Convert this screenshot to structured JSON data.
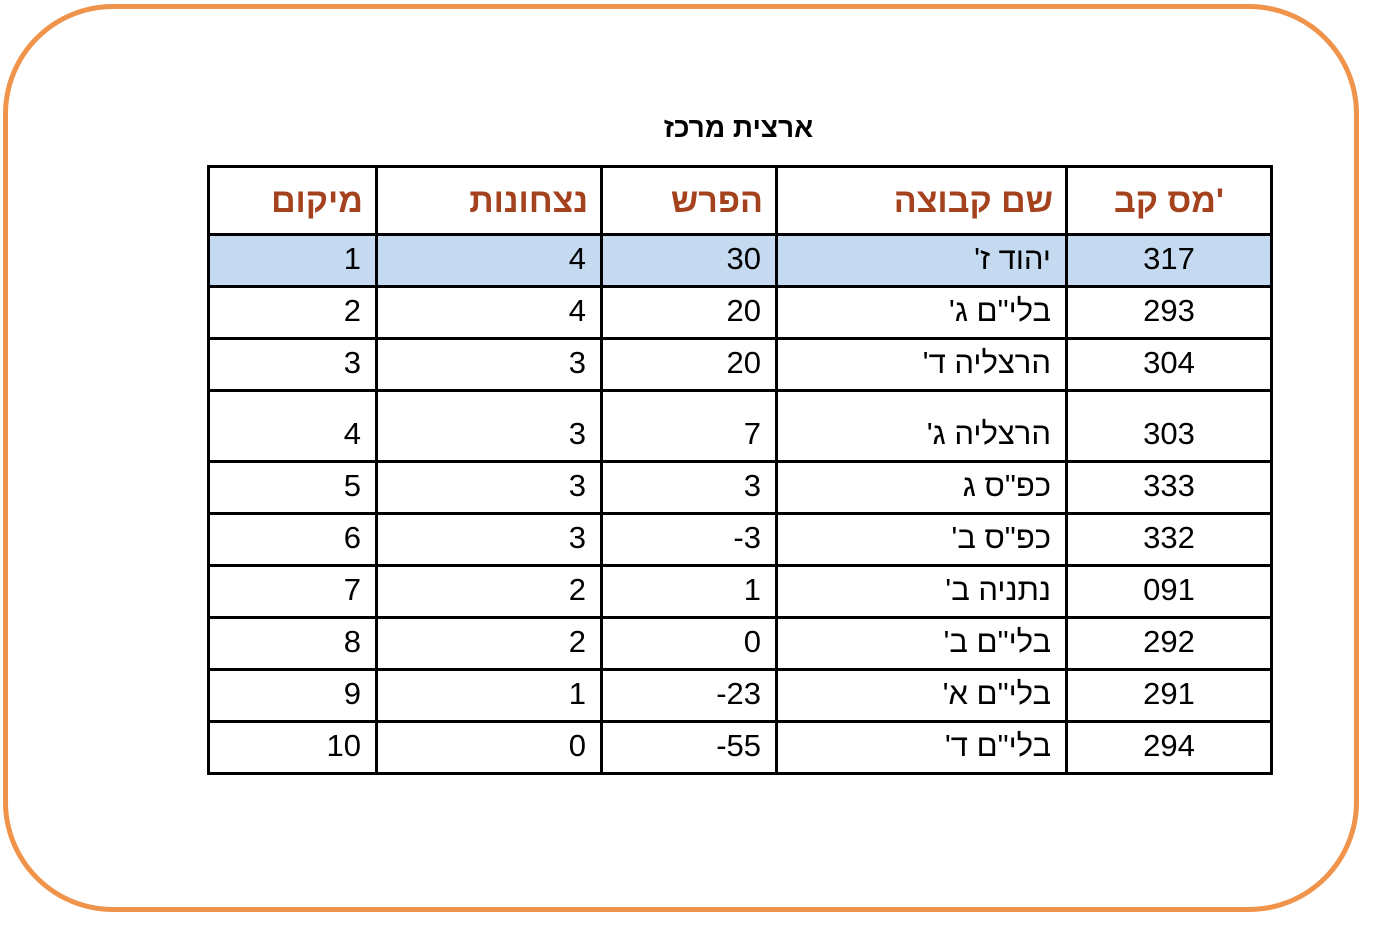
{
  "title": "ארצית מרכז",
  "colors": {
    "frame_border": "#F0944C",
    "header_text": "#A5421E",
    "highlight_row_background": "#C5DAF0",
    "cell_border": "#000000"
  },
  "table": {
    "columns": [
      {
        "key": "team_number",
        "label": "מס קב'"
      },
      {
        "key": "team_name",
        "label": "שם קבוצה"
      },
      {
        "key": "difference",
        "label": "הפרש"
      },
      {
        "key": "wins",
        "label": "נצחונות"
      },
      {
        "key": "rank",
        "label": "מיקום"
      }
    ],
    "rows": [
      {
        "team_number": "317",
        "team_name": "יהוד ז'",
        "difference": "30",
        "wins": "4",
        "rank": "1",
        "highlighted": true
      },
      {
        "team_number": "293",
        "team_name": "בלי\"ם ג'",
        "difference": "20",
        "wins": "4",
        "rank": "2",
        "highlighted": false
      },
      {
        "team_number": "304",
        "team_name": "הרצליה ד'",
        "difference": "20",
        "wins": "3",
        "rank": "3",
        "highlighted": false
      },
      {
        "team_number": "303",
        "team_name": "הרצליה ג'",
        "difference": "7",
        "wins": "3",
        "rank": "4",
        "highlighted": false
      },
      {
        "team_number": "333",
        "team_name": "כפ\"ס ג",
        "difference": "3",
        "wins": "3",
        "rank": "5",
        "highlighted": false
      },
      {
        "team_number": "332",
        "team_name": "כפ\"ס ב'",
        "difference": "-3",
        "wins": "3",
        "rank": "6",
        "highlighted": false
      },
      {
        "team_number": "091",
        "team_name": "נתניה ב'",
        "difference": "1",
        "wins": "2",
        "rank": "7",
        "highlighted": false
      },
      {
        "team_number": "292",
        "team_name": "בלי\"ם ב'",
        "difference": "0",
        "wins": "2",
        "rank": "8",
        "highlighted": false
      },
      {
        "team_number": "291",
        "team_name": "בלי\"ם א'",
        "difference": "-23",
        "wins": "1",
        "rank": "9",
        "highlighted": false
      },
      {
        "team_number": "294",
        "team_name": "בלי\"ם ד'",
        "difference": "-55",
        "wins": "0",
        "rank": "10",
        "highlighted": false
      }
    ]
  }
}
